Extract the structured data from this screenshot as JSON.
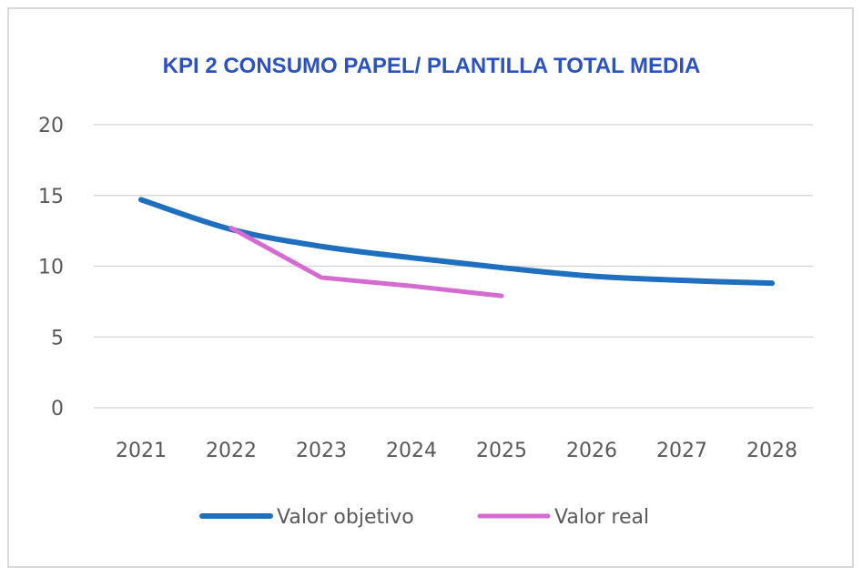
{
  "chart_data": {
    "type": "line",
    "title": "KPI 2 CONSUMO PAPEL/ PLANTILLA TOTAL MEDIA",
    "categories": [
      "2021",
      "2022",
      "2023",
      "2024",
      "2025",
      "2026",
      "2027",
      "2028"
    ],
    "series": [
      {
        "name": "Valor objetivo",
        "color": "#1f6fbf",
        "values": [
          14.7,
          12.6,
          11.4,
          10.6,
          9.9,
          9.3,
          9.0,
          8.8
        ]
      },
      {
        "name": "Valor real",
        "color": "#d56bd0",
        "values": [
          null,
          12.7,
          9.2,
          8.6,
          7.9,
          null,
          null,
          null
        ]
      }
    ],
    "ylim": [
      0,
      20
    ],
    "yticks": [
      "0",
      "5",
      "10",
      "15",
      "20"
    ],
    "grid": true,
    "legend": "bottom"
  }
}
